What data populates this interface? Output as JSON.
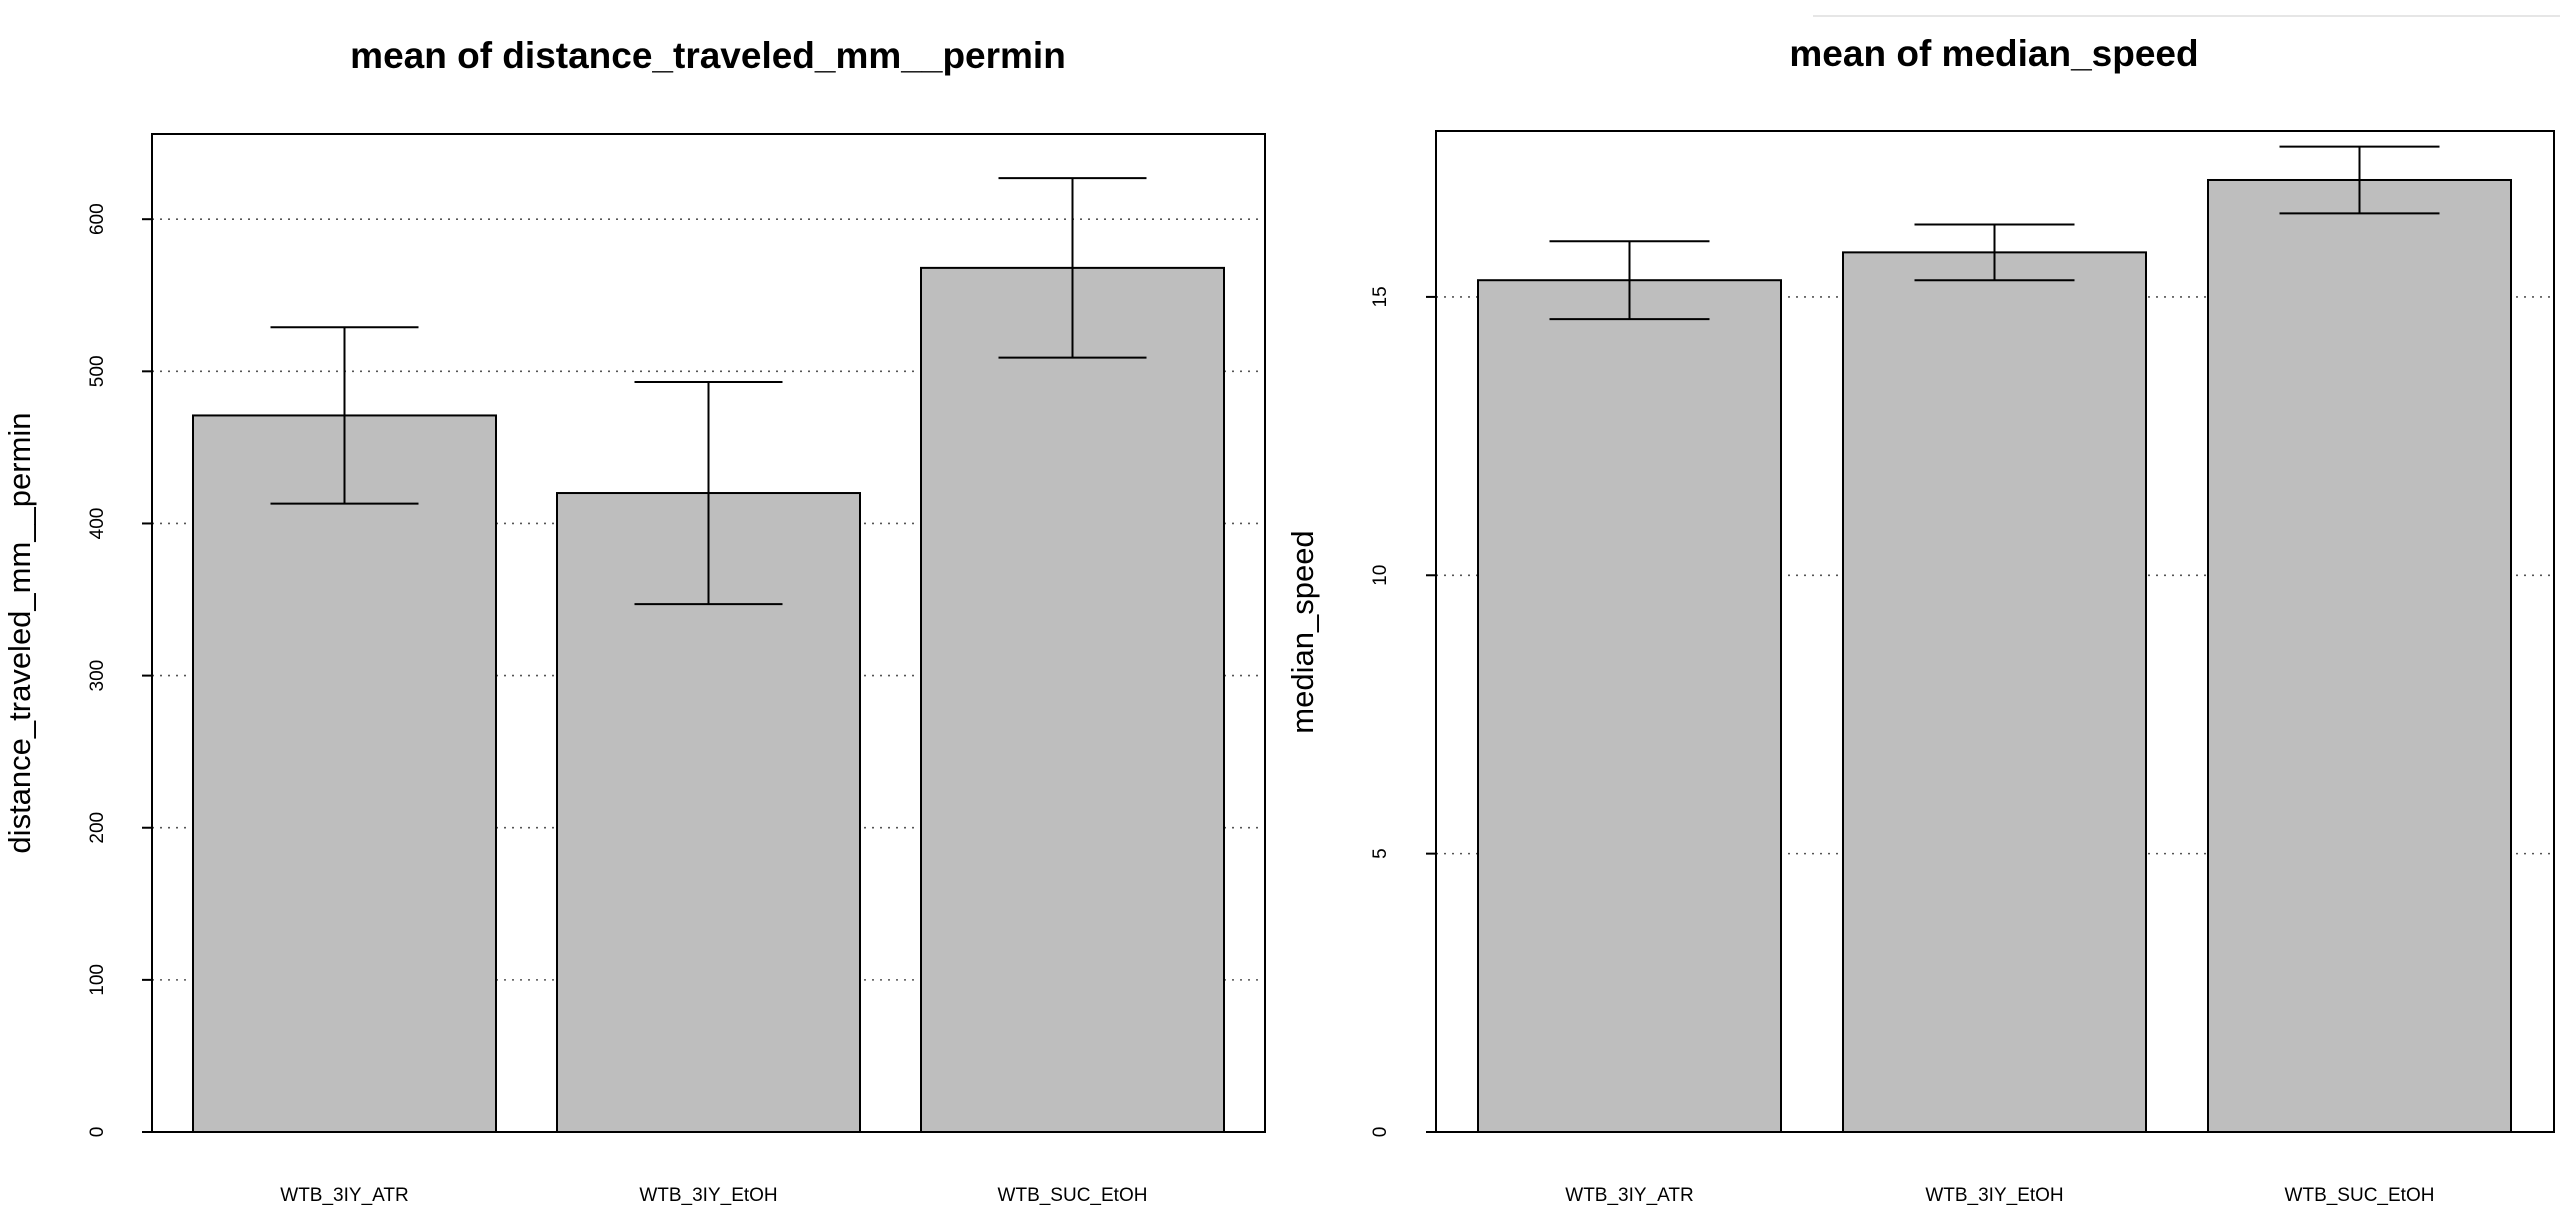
{
  "chart_data": [
    {
      "type": "bar",
      "title": "mean of  distance_traveled_mm__permin",
      "xlabel": "",
      "ylabel": "distance_traveled_mm__permin",
      "categories": [
        "WTB_3IY_ATR",
        "WTB_3IY_EtOH",
        "WTB_SUC_EtOH"
      ],
      "values": [
        471,
        420,
        568
      ],
      "error_low": [
        413,
        347,
        509
      ],
      "error_high": [
        529,
        493,
        627
      ],
      "ylim": [
        0,
        656
      ],
      "yticks": [
        0,
        100,
        200,
        300,
        400,
        500,
        600
      ],
      "grid": "horizontal dotted",
      "bar_color": "#bebebe"
    },
    {
      "type": "bar",
      "title": "mean of  median_speed",
      "xlabel": "",
      "ylabel": "median_speed",
      "categories": [
        "WTB_3IY_ATR",
        "WTB_3IY_EtOH",
        "WTB_SUC_EtOH"
      ],
      "values": [
        15.3,
        15.8,
        17.1
      ],
      "error_low": [
        14.6,
        15.3,
        16.5
      ],
      "error_high": [
        16.0,
        16.3,
        17.7
      ],
      "ylim": [
        0,
        17.98
      ],
      "yticks": [
        0,
        5,
        10,
        15
      ],
      "grid": "horizontal dotted",
      "bar_color": "#bebebe"
    }
  ]
}
